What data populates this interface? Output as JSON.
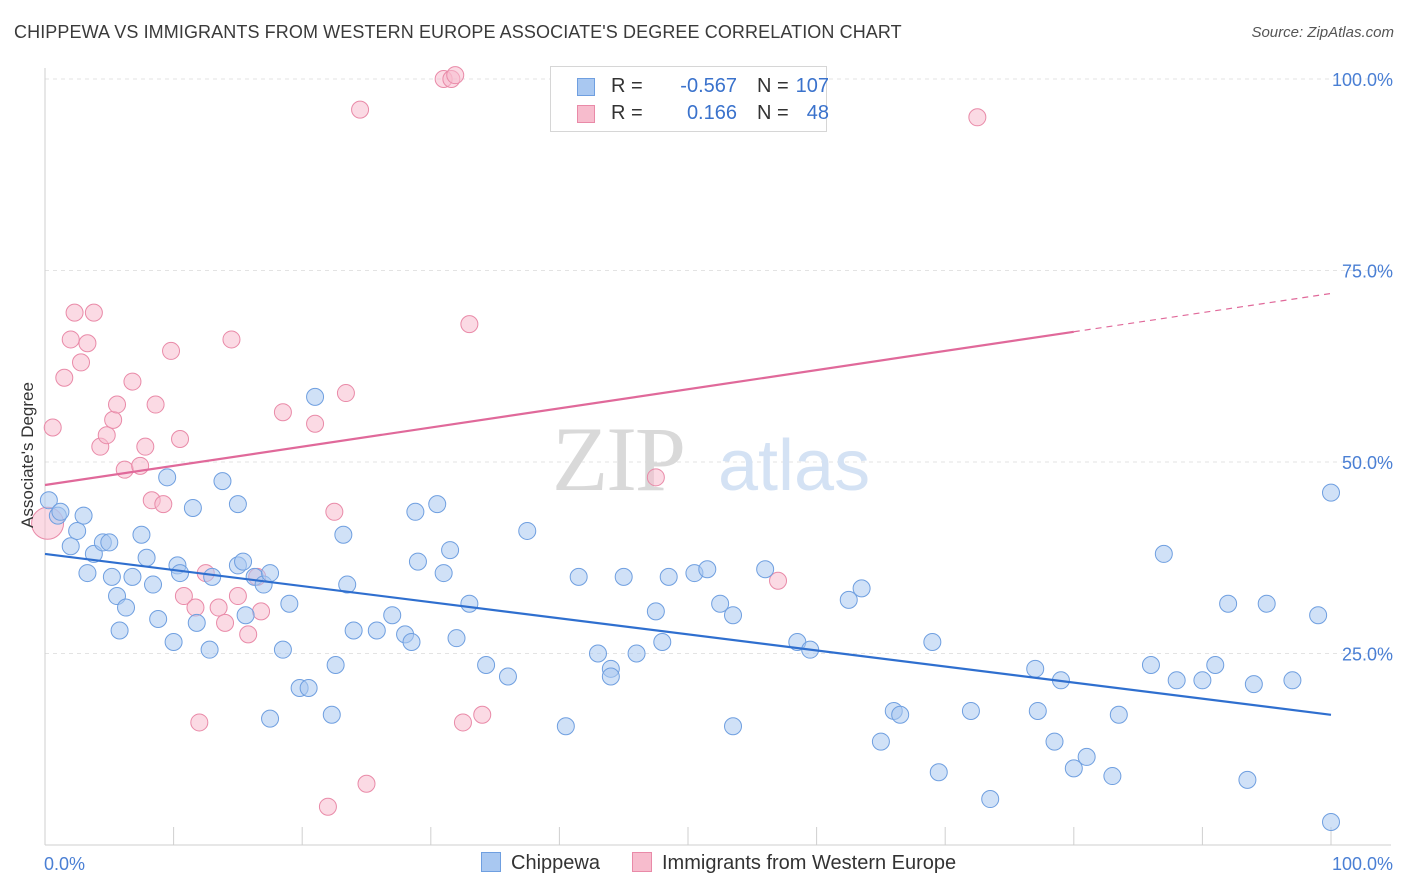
{
  "header": {
    "title": "CHIPPEWA VS IMMIGRANTS FROM WESTERN EUROPE ASSOCIATE'S DEGREE CORRELATION CHART",
    "source": "Source: ZipAtlas.com"
  },
  "watermark": {
    "zip": "ZIP",
    "atlas": "atlas"
  },
  "legend": {
    "rows": [
      {
        "r_label": "R =",
        "r_value": "-0.567",
        "n_label": "N =",
        "n_value": "107",
        "color": "#a9c8f1",
        "stroke": "#6f9fe0"
      },
      {
        "r_label": "R =",
        "r_value": "0.166",
        "n_label": "N =",
        "n_value": "48",
        "color": "#f7bccd",
        "stroke": "#e98aa8"
      }
    ]
  },
  "colors": {
    "blue_fill": "#a9c8f1",
    "blue_stroke": "#6f9fe0",
    "blue_line": "#2f6fcf",
    "pink_fill": "#f7bccd",
    "pink_stroke": "#e98aa8",
    "pink_line": "#e0699a",
    "grid": "#e3e3e3",
    "tick_label": "#4a7fd4"
  },
  "chart_data": {
    "type": "scatter",
    "title": "CHIPPEWA VS IMMIGRANTS FROM WESTERN EUROPE ASSOCIATE'S DEGREE CORRELATION CHART",
    "xlabel": "",
    "ylabel": "Associate's Degree",
    "xlim": [
      0,
      100
    ],
    "ylim": [
      0,
      100
    ],
    "x_tick_labels": [
      {
        "value": 0,
        "label": "0.0%"
      },
      {
        "value": 100,
        "label": "100.0%"
      }
    ],
    "y_tick_labels": [
      {
        "value": 25,
        "label": "25.0%"
      },
      {
        "value": 50,
        "label": "50.0%"
      },
      {
        "value": 75,
        "label": "75.0%"
      },
      {
        "value": 100,
        "label": "100.0%"
      }
    ],
    "grid": true,
    "legend_position": "top-center",
    "series": [
      {
        "name": "Chippewa",
        "color": "#a9c8f1",
        "trend": {
          "x": [
            0,
            100
          ],
          "y": [
            38,
            17
          ]
        },
        "points": [
          [
            0.3,
            45
          ],
          [
            1.0,
            43
          ],
          [
            1.2,
            43.5
          ],
          [
            2,
            39
          ],
          [
            2.5,
            41
          ],
          [
            3,
            43
          ],
          [
            3.3,
            35.5
          ],
          [
            3.8,
            38
          ],
          [
            4.5,
            39.5
          ],
          [
            5,
            39.5
          ],
          [
            5.2,
            35
          ],
          [
            5.6,
            32.5
          ],
          [
            5.8,
            28
          ],
          [
            6.3,
            31
          ],
          [
            6.8,
            35
          ],
          [
            7.5,
            40.5
          ],
          [
            7.9,
            37.5
          ],
          [
            8.4,
            34
          ],
          [
            8.8,
            29.5
          ],
          [
            9.5,
            48
          ],
          [
            10,
            26.5
          ],
          [
            10.3,
            36.5
          ],
          [
            10.5,
            35.5
          ],
          [
            11.5,
            44
          ],
          [
            11.8,
            29
          ],
          [
            12.8,
            25.5
          ],
          [
            13,
            35
          ],
          [
            13.8,
            47.5
          ],
          [
            15,
            44.5
          ],
          [
            15,
            36.5
          ],
          [
            15.4,
            37
          ],
          [
            15.6,
            30
          ],
          [
            16.3,
            35
          ],
          [
            17,
            34
          ],
          [
            17.5,
            35.5
          ],
          [
            17.5,
            16.5
          ],
          [
            18.5,
            25.5
          ],
          [
            19,
            31.5
          ],
          [
            19.8,
            20.5
          ],
          [
            20.5,
            20.5
          ],
          [
            21,
            58.5
          ],
          [
            22.3,
            17
          ],
          [
            22.6,
            23.5
          ],
          [
            23.2,
            40.5
          ],
          [
            23.5,
            34
          ],
          [
            24,
            28
          ],
          [
            25.8,
            28
          ],
          [
            27,
            30
          ],
          [
            28,
            27.5
          ],
          [
            28.5,
            26.5
          ],
          [
            28.8,
            43.5
          ],
          [
            29,
            37
          ],
          [
            30.5,
            44.5
          ],
          [
            31,
            35.5
          ],
          [
            31.5,
            38.5
          ],
          [
            32,
            27
          ],
          [
            33,
            31.5
          ],
          [
            34.3,
            23.5
          ],
          [
            36,
            22
          ],
          [
            37.5,
            41
          ],
          [
            40.5,
            15.5
          ],
          [
            41.5,
            35
          ],
          [
            43,
            25
          ],
          [
            44,
            23
          ],
          [
            44,
            22
          ],
          [
            45,
            35
          ],
          [
            46,
            25
          ],
          [
            47.5,
            30.5
          ],
          [
            48,
            26.5
          ],
          [
            48.5,
            35
          ],
          [
            50.5,
            35.5
          ],
          [
            51.5,
            36
          ],
          [
            52.5,
            31.5
          ],
          [
            53.5,
            30
          ],
          [
            53.5,
            15.5
          ],
          [
            56,
            36
          ],
          [
            58.5,
            26.5
          ],
          [
            59.5,
            25.5
          ],
          [
            62.5,
            32
          ],
          [
            63.5,
            33.5
          ],
          [
            65,
            13.5
          ],
          [
            66,
            17.5
          ],
          [
            66.5,
            17
          ],
          [
            69,
            26.5
          ],
          [
            69.5,
            9.5
          ],
          [
            72,
            17.5
          ],
          [
            73.5,
            6
          ],
          [
            77,
            23
          ],
          [
            77.2,
            17.5
          ],
          [
            78.5,
            13.5
          ],
          [
            79,
            21.5
          ],
          [
            80,
            10
          ],
          [
            81,
            11.5
          ],
          [
            83,
            9
          ],
          [
            83.5,
            17
          ],
          [
            86,
            23.5
          ],
          [
            87,
            38
          ],
          [
            88,
            21.5
          ],
          [
            90,
            21.5
          ],
          [
            91,
            23.5
          ],
          [
            92,
            31.5
          ],
          [
            93.5,
            8.5
          ],
          [
            94,
            21
          ],
          [
            95,
            31.5
          ],
          [
            97,
            21.5
          ],
          [
            99,
            30
          ],
          [
            100,
            46
          ],
          [
            100,
            3
          ]
        ]
      },
      {
        "name": "Immigrants from Western Europe",
        "color": "#f7bccd",
        "trend": {
          "x": [
            0,
            80,
            100
          ],
          "y": [
            47,
            67,
            72
          ],
          "dashed_from": 80
        },
        "points": [
          [
            0.2,
            42
          ],
          [
            0.6,
            54.5
          ],
          [
            1.5,
            61
          ],
          [
            2,
            66
          ],
          [
            2.3,
            69.5
          ],
          [
            2.8,
            63
          ],
          [
            3.3,
            65.5
          ],
          [
            3.8,
            69.5
          ],
          [
            4.3,
            52
          ],
          [
            4.8,
            53.5
          ],
          [
            5.3,
            55.5
          ],
          [
            5.6,
            57.5
          ],
          [
            6.2,
            49
          ],
          [
            6.8,
            60.5
          ],
          [
            7.4,
            49.5
          ],
          [
            7.8,
            52
          ],
          [
            8.3,
            45
          ],
          [
            8.6,
            57.5
          ],
          [
            9.2,
            44.5
          ],
          [
            9.8,
            64.5
          ],
          [
            10.5,
            53
          ],
          [
            10.8,
            32.5
          ],
          [
            11.7,
            31
          ],
          [
            12,
            16
          ],
          [
            12.5,
            35.5
          ],
          [
            13.5,
            31
          ],
          [
            14,
            29
          ],
          [
            14.5,
            66
          ],
          [
            15,
            32.5
          ],
          [
            15.8,
            27.5
          ],
          [
            16.5,
            35
          ],
          [
            16.8,
            30.5
          ],
          [
            18.5,
            56.5
          ],
          [
            21,
            55
          ],
          [
            22,
            5
          ],
          [
            22.5,
            43.5
          ],
          [
            23.4,
            59
          ],
          [
            24.5,
            96
          ],
          [
            25,
            8
          ],
          [
            31,
            100
          ],
          [
            31.6,
            100
          ],
          [
            31.9,
            100.5
          ],
          [
            32.5,
            16
          ],
          [
            33,
            68
          ],
          [
            34,
            17
          ],
          [
            47.5,
            48
          ],
          [
            57,
            34.5
          ],
          [
            72.5,
            95
          ]
        ]
      }
    ]
  },
  "bottom_legend": [
    {
      "label": "Chippewa"
    },
    {
      "label": "Immigrants from Western Europe"
    }
  ]
}
